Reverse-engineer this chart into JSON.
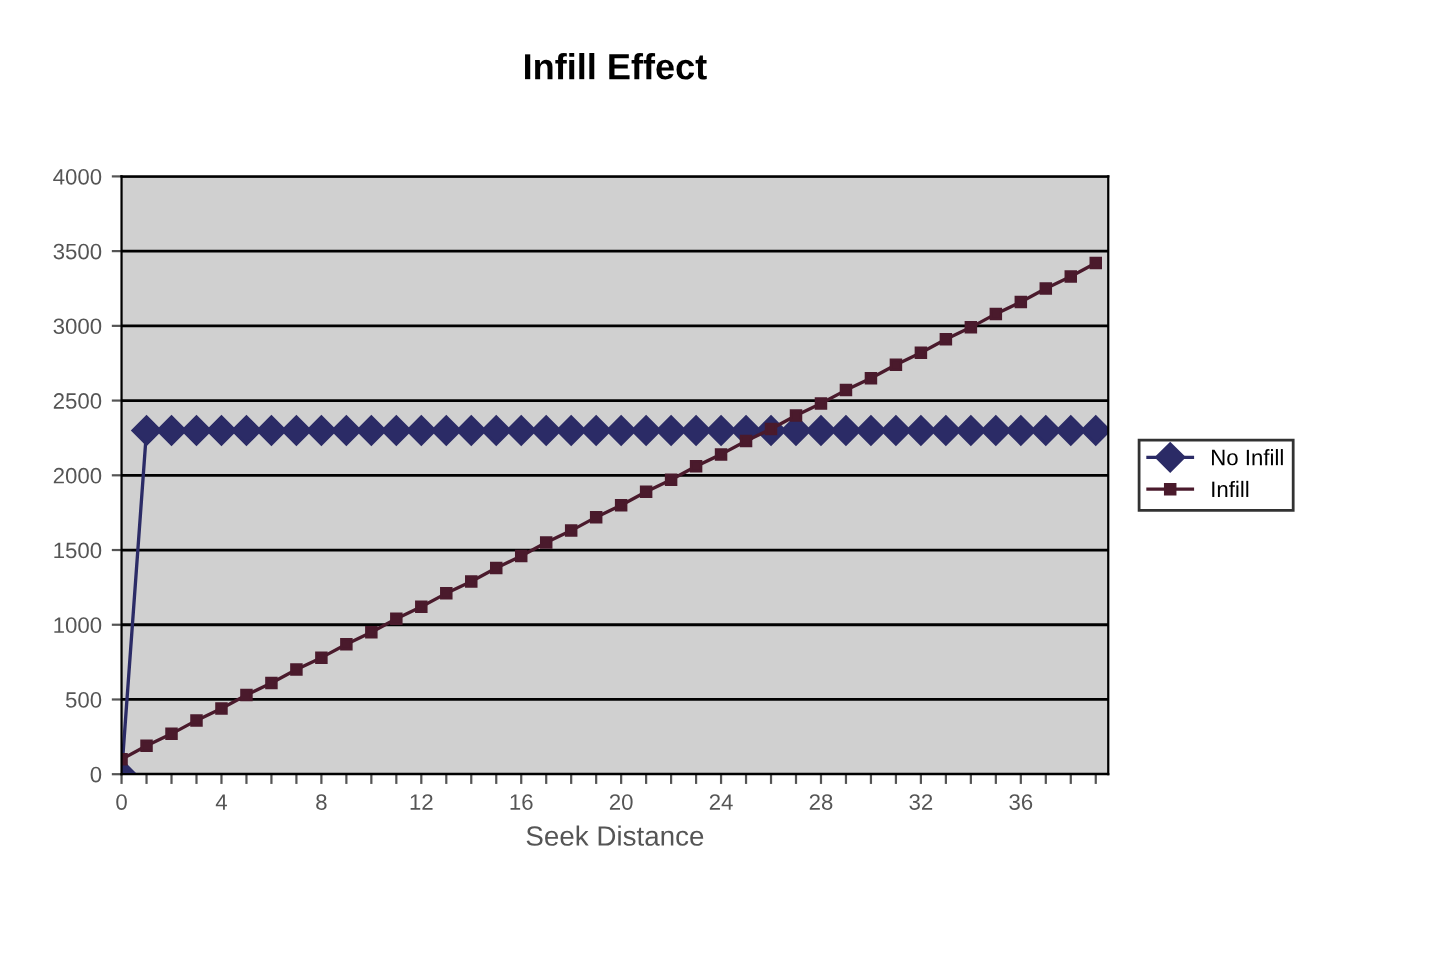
{
  "chart_data": {
    "type": "line",
    "title": "Infill Effect",
    "xlabel": "Seek Distance",
    "categories": [
      "0",
      null,
      null,
      null,
      "4",
      null,
      null,
      null,
      "8",
      null,
      null,
      null,
      "12",
      null,
      null,
      null,
      "16",
      null,
      null,
      null,
      "20",
      null,
      null,
      null,
      "24",
      null,
      null,
      null,
      "28",
      null,
      null,
      null,
      "32",
      null,
      null,
      null,
      "36",
      null,
      null,
      null
    ],
    "series": [
      {
        "name": "No Infill",
        "color": "#2b2b66",
        "marker": "diamond",
        "values": [
          0,
          2300,
          2300,
          2300,
          2300,
          2300,
          2300,
          2300,
          2300,
          2300,
          2300,
          2300,
          2300,
          2300,
          2300,
          2300,
          2300,
          2300,
          2300,
          2300,
          2300,
          2300,
          2300,
          2300,
          2300,
          2300,
          2300,
          2300,
          2300,
          2300,
          2300,
          2300,
          2300,
          2300,
          2300,
          2300,
          2300,
          2300,
          2300,
          2300
        ]
      },
      {
        "name": "Infill",
        "color": "#4a1a2c",
        "marker": "square",
        "values": [
          100,
          190,
          270,
          360,
          440,
          530,
          610,
          700,
          780,
          870,
          950,
          1040,
          1120,
          1210,
          1290,
          1380,
          1460,
          1550,
          1630,
          1720,
          1800,
          1890,
          1970,
          2060,
          2140,
          2230,
          2310,
          2400,
          2480,
          2570,
          2650,
          2740,
          2820,
          2910,
          2990,
          3080,
          3160,
          3250,
          3330,
          3420
        ]
      }
    ],
    "ylim": [
      0,
      4000
    ],
    "yticks": [
      0,
      500,
      1000,
      1500,
      2000,
      2500,
      3000,
      3500,
      4000
    ],
    "grid": "y",
    "legend": "right",
    "line_style": "solid"
  }
}
